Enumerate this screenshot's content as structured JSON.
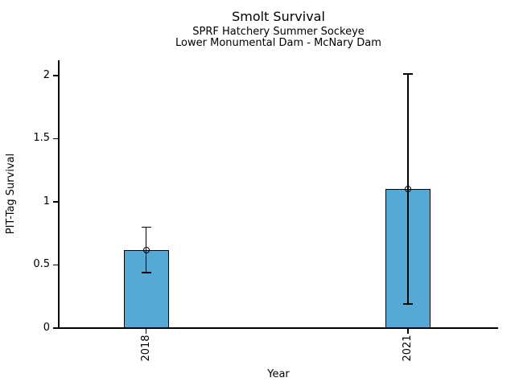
{
  "chart_data": {
    "type": "bar",
    "title": "Smolt Survival",
    "subtitle_lines": [
      "SPRF Hatchery Summer Sockeye",
      "Lower Monumental Dam - McNary Dam"
    ],
    "xlabel": "Year",
    "ylabel": "PIT-Tag Survival",
    "categories": [
      "2018",
      "2021"
    ],
    "values": [
      0.62,
      1.1
    ],
    "error_bars": {
      "low": [
        0.44,
        0.19
      ],
      "high": [
        0.8,
        2.01
      ]
    },
    "ytick_labels": [
      "0",
      "0.5",
      "1",
      "1.5",
      "2"
    ],
    "ytick_values": [
      0,
      0.5,
      1,
      1.5,
      2
    ],
    "ylim": [
      0,
      2.12
    ],
    "bar_color": "#56a9d5",
    "bar_edge_color": "#000000",
    "marker": "open-circle",
    "grid": false,
    "legend": false
  }
}
